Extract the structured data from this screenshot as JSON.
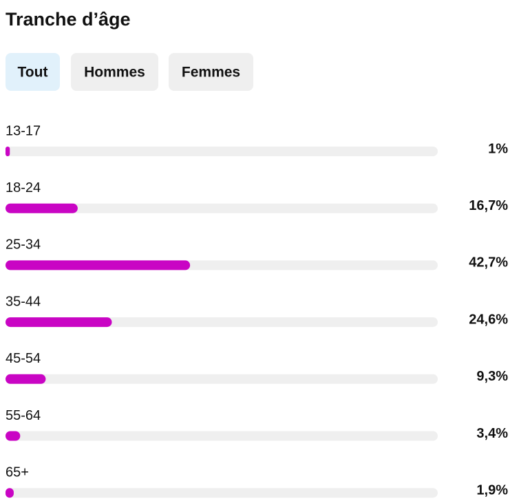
{
  "tabs": [
    "Tout",
    "Hommes",
    "Femmes"
  ],
  "chart_data": {
    "type": "bar",
    "title": "Tranche d’âge",
    "categories": [
      "13-17",
      "18-24",
      "25-34",
      "35-44",
      "45-54",
      "55-64",
      "65+"
    ],
    "values": [
      1,
      16.7,
      42.7,
      24.6,
      9.3,
      3.4,
      1.9
    ],
    "value_labels": [
      "1%",
      "16,7%",
      "42,7%",
      "24,6%",
      "9,3%",
      "3,4%",
      "1,9%"
    ],
    "color": "#c905c4",
    "xlim": [
      0,
      100
    ]
  }
}
